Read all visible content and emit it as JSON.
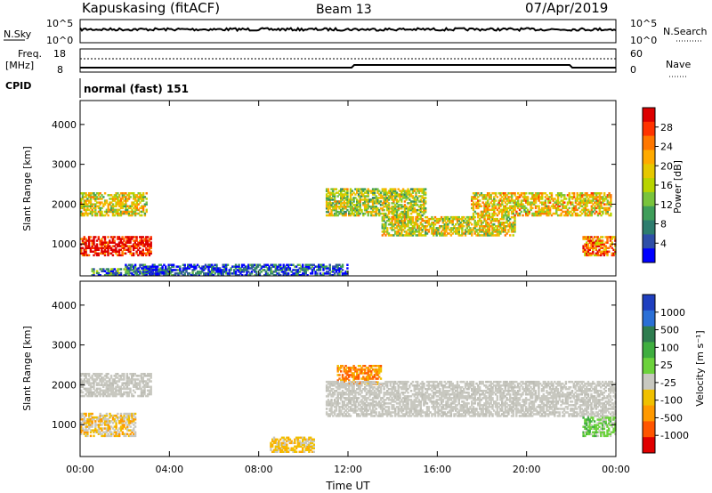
{
  "header": {
    "station": "Kapuskasing (fitACF)",
    "beam": "Beam 13",
    "date": "07/Apr/2019"
  },
  "nsky_panel": {
    "left_label": "N.Sky",
    "right_label": "N.Search",
    "left_ticks": [
      "10^5",
      "10^0"
    ],
    "right_ticks": [
      "10^5",
      "10^0"
    ]
  },
  "freq_panel": {
    "left_label_line1": "Freq.",
    "left_label_line2": "[MHz]",
    "right_label": "Nave",
    "left_ticks": [
      "18",
      "8"
    ],
    "right_ticks": [
      "60",
      "0"
    ]
  },
  "cpid": {
    "label": "CPID",
    "value": "normal (fast) 151"
  },
  "chart_data": [
    {
      "type": "heatmap",
      "panel": "power",
      "xlabel": "",
      "ylabel": "Slant Range [km]",
      "x_ticks": [
        "00:00",
        "04:00",
        "08:00",
        "12:00",
        "16:00",
        "20:00",
        "00:00"
      ],
      "y_ticks": [
        1000,
        2000,
        3000,
        4000
      ],
      "ylim": [
        200,
        4600
      ],
      "colorbar": {
        "label": "Power [dB]",
        "ticks": [
          "28",
          "24",
          "20",
          "16",
          "12",
          "8",
          "4"
        ],
        "colors": [
          "#dd0000",
          "#ff3300",
          "#ff7700",
          "#ffaa00",
          "#e6c800",
          "#b8d400",
          "#79c43c",
          "#3f9e5a",
          "#2e7d6e",
          "#2f4fa8",
          "#0000ff"
        ]
      },
      "regions": [
        {
          "t": [
            0.0,
            3.2
          ],
          "r": [
            700,
            1200
          ],
          "level": 0.95
        },
        {
          "t": [
            0.0,
            3.0
          ],
          "r": [
            1700,
            2300
          ],
          "level": 0.55
        },
        {
          "t": [
            0.5,
            4.0
          ],
          "r": [
            200,
            400
          ],
          "level": 0.25
        },
        {
          "t": [
            11.0,
            15.5
          ],
          "r": [
            1700,
            2400
          ],
          "level": 0.5
        },
        {
          "t": [
            13.5,
            19.5
          ],
          "r": [
            1200,
            1700
          ],
          "level": 0.55
        },
        {
          "t": [
            17.5,
            23.8
          ],
          "r": [
            1700,
            2300
          ],
          "level": 0.6
        },
        {
          "t": [
            22.5,
            24.0
          ],
          "r": [
            700,
            1200
          ],
          "level": 0.75
        },
        {
          "t": [
            2.0,
            12.0
          ],
          "r": [
            200,
            500
          ],
          "level": 0.15
        }
      ]
    },
    {
      "type": "heatmap",
      "panel": "velocity",
      "xlabel": "Time UT",
      "ylabel": "Slant Range [km]",
      "x_ticks": [
        "00:00",
        "04:00",
        "08:00",
        "12:00",
        "16:00",
        "20:00",
        "00:00"
      ],
      "y_ticks": [
        1000,
        2000,
        3000,
        4000
      ],
      "ylim": [
        200,
        4600
      ],
      "colorbar": {
        "label": "Velocity [m s⁻¹]",
        "ticks": [
          "1000",
          "500",
          "100",
          "25",
          "-25",
          "-100",
          "-500",
          "-1000"
        ],
        "colors": [
          "#1f3fbf",
          "#2a6fd6",
          "#2e7d4f",
          "#3fae3f",
          "#6cd23c",
          "#c8c8c0",
          "#f0c000",
          "#ff9900",
          "#ff5500",
          "#e00000"
        ]
      },
      "regions": [
        {
          "t": [
            0.0,
            3.2
          ],
          "r": [
            1700,
            2300
          ],
          "v": "gray"
        },
        {
          "t": [
            0.0,
            2.5
          ],
          "r": [
            700,
            1300
          ],
          "v": "gray-orange"
        },
        {
          "t": [
            11.5,
            13.5
          ],
          "r": [
            2000,
            2500
          ],
          "v": "orange"
        },
        {
          "t": [
            11.0,
            24.0
          ],
          "r": [
            1200,
            2100
          ],
          "v": "gray"
        },
        {
          "t": [
            22.5,
            24.0
          ],
          "r": [
            700,
            1200
          ],
          "v": "green"
        },
        {
          "t": [
            8.5,
            10.5
          ],
          "r": [
            300,
            700
          ],
          "v": "yellow"
        }
      ]
    }
  ]
}
